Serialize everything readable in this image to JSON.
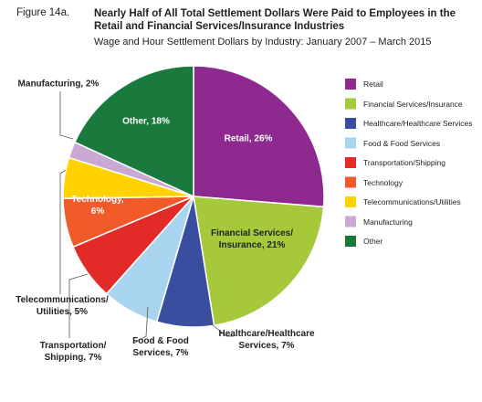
{
  "chart_data": {
    "type": "pie",
    "figure_label": "Figure 14a.",
    "title": "Nearly Half of All Total Settlement Dollars Were Paid to Employees in the Retail and Financial Services/Insurance Industries",
    "subtitle": "Wage and Hour Settlement Dollars by Industry: January 2007 – March 2015",
    "categories": [
      "Retail",
      "Financial Services/Insurance",
      "Healthcare/Healthcare Services",
      "Food & Food Services",
      "Transportation/Shipping",
      "Technology",
      "Telecommunications/Utilities",
      "Manufacturing",
      "Other"
    ],
    "values": [
      26,
      21,
      7,
      7,
      7,
      6,
      5,
      2,
      18
    ],
    "value_labels": [
      "Retail, 26%",
      "Financial Services/\nInsurance, 21%",
      "Healthcare/Healthcare\nServices, 7%",
      "Food & Food\nServices, 7%",
      "Transportation/\nShipping, 7%",
      "Technology,\n6%",
      "Telecommunications/\nUtilities, 5%",
      "Manufacturing, 2%",
      "Other, 18%"
    ],
    "colors": [
      "#8e2a8f",
      "#a5c93a",
      "#3a4ea0",
      "#a9d4ef",
      "#e22b26",
      "#f15a29",
      "#ffd200",
      "#c9a9d3",
      "#1a7a3e"
    ]
  }
}
